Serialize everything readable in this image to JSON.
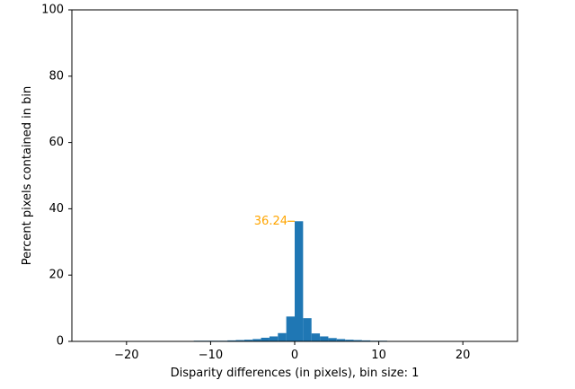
{
  "chart_data": {
    "type": "bar",
    "title": "",
    "xlabel": "Disparity differences (in pixels), bin size: 1",
    "ylabel": "Percent pixels contained in bin",
    "xlim": [
      -26.5,
      26.5
    ],
    "ylim": [
      0,
      100
    ],
    "xticks": [
      -20,
      -10,
      0,
      10,
      20
    ],
    "xtick_labels": [
      "−20",
      "−10",
      "0",
      "10",
      "20"
    ],
    "yticks": [
      0,
      20,
      40,
      60,
      80,
      100
    ],
    "ytick_labels": [
      "0",
      "20",
      "40",
      "60",
      "80",
      "100"
    ],
    "grid": false,
    "bin_width": 1,
    "bins": [
      {
        "x": -25,
        "y": 0.1
      },
      {
        "x": -24,
        "y": 0.1
      },
      {
        "x": -23,
        "y": 0.1
      },
      {
        "x": -22,
        "y": 0.1
      },
      {
        "x": -21,
        "y": 0.1
      },
      {
        "x": -20,
        "y": 0.1
      },
      {
        "x": -19,
        "y": 0.1
      },
      {
        "x": -18,
        "y": 0.1
      },
      {
        "x": -17,
        "y": 0.1
      },
      {
        "x": -16,
        "y": 0.1
      },
      {
        "x": -15,
        "y": 0.1
      },
      {
        "x": -14,
        "y": 0.1
      },
      {
        "x": -13,
        "y": 0.1
      },
      {
        "x": -12,
        "y": 0.1
      },
      {
        "x": -11,
        "y": 0.2
      },
      {
        "x": -10,
        "y": 0.2
      },
      {
        "x": -9,
        "y": 0.2
      },
      {
        "x": -8,
        "y": 0.2
      },
      {
        "x": -7,
        "y": 0.3
      },
      {
        "x": -6,
        "y": 0.4
      },
      {
        "x": -5,
        "y": 0.5
      },
      {
        "x": -4,
        "y": 0.7
      },
      {
        "x": -3,
        "y": 1.1
      },
      {
        "x": -2,
        "y": 1.5
      },
      {
        "x": -1,
        "y": 2.5
      },
      {
        "x": 0,
        "y": 7.5
      },
      {
        "x": 1,
        "y": 36.24
      },
      {
        "x": 2,
        "y": 7.0
      },
      {
        "x": 3,
        "y": 2.4
      },
      {
        "x": 4,
        "y": 1.5
      },
      {
        "x": 5,
        "y": 1.0
      },
      {
        "x": 6,
        "y": 0.7
      },
      {
        "x": 7,
        "y": 0.5
      },
      {
        "x": 8,
        "y": 0.4
      },
      {
        "x": 9,
        "y": 0.3
      },
      {
        "x": 10,
        "y": 0.2
      },
      {
        "x": 11,
        "y": 0.2
      },
      {
        "x": 12,
        "y": 0.1
      },
      {
        "x": 13,
        "y": 0.1
      },
      {
        "x": 14,
        "y": 0.1
      },
      {
        "x": 15,
        "y": 0.1
      },
      {
        "x": 16,
        "y": 0.1
      },
      {
        "x": 17,
        "y": 0.1
      },
      {
        "x": 18,
        "y": 0.1
      },
      {
        "x": 19,
        "y": 0.1
      },
      {
        "x": 20,
        "y": 0.1
      },
      {
        "x": 21,
        "y": 0.1
      },
      {
        "x": 22,
        "y": 0.1
      },
      {
        "x": 24,
        "y": 0.1
      }
    ],
    "bar_color": "#1f77b4",
    "annotation": {
      "text": "36.24",
      "value": 36.24,
      "color": "#ffa500"
    }
  }
}
